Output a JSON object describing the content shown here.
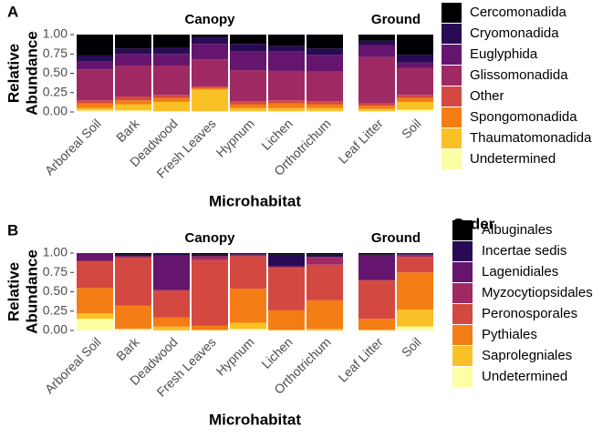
{
  "chart_data": [
    {
      "type": "bar",
      "stacked": true,
      "panel_label": "A",
      "xlabel": "Microhabitat",
      "ylabel": [
        "Relative",
        "Abundance"
      ],
      "ylim": [
        0,
        1
      ],
      "yticks": [
        {
          "value": 0,
          "label": "0.00"
        },
        {
          "value": 0.25,
          "label": "0.25"
        },
        {
          "value": 0.5,
          "label": "0.50"
        },
        {
          "value": 0.75,
          "label": "0.75"
        },
        {
          "value": 1,
          "label": "1.00"
        }
      ],
      "series": [
        {
          "name": "Cercomonadida",
          "color": "#000004"
        },
        {
          "name": "Cryomonadida",
          "color": "#280b54"
        },
        {
          "name": "Euglyphida",
          "color": "#65156e"
        },
        {
          "name": "Glissomonadida",
          "color": "#9f2a63"
        },
        {
          "name": "Other",
          "color": "#d44842"
        },
        {
          "name": "Spongomonadida",
          "color": "#f57d15"
        },
        {
          "name": "Thaumatomonadida",
          "color": "#fac127"
        },
        {
          "name": "Undetermined",
          "color": "#fcffa4"
        }
      ],
      "facets": [
        {
          "title": "Canopy",
          "categories": [
            "Arboreal Soil",
            "Bark",
            "Deadwood",
            "Fresh Leaves",
            "Hypnum",
            "Lichen",
            "Orthotrichum"
          ],
          "series": [
            {
              "values": [
                0.27,
                0.18,
                0.17,
                0.03,
                0.12,
                0.15,
                0.18
              ]
            },
            {
              "values": [
                0.08,
                0.07,
                0.08,
                0.09,
                0.1,
                0.07,
                0.08
              ]
            },
            {
              "values": [
                0.1,
                0.15,
                0.15,
                0.2,
                0.24,
                0.25,
                0.22
              ]
            },
            {
              "values": [
                0.4,
                0.4,
                0.38,
                0.35,
                0.4,
                0.38,
                0.38
              ]
            },
            {
              "values": [
                0.04,
                0.05,
                0.04,
                0.02,
                0.04,
                0.04,
                0.04
              ]
            },
            {
              "values": [
                0.06,
                0.05,
                0.05,
                0.02,
                0.05,
                0.06,
                0.05
              ]
            },
            {
              "values": [
                0.03,
                0.08,
                0.12,
                0.28,
                0.04,
                0.04,
                0.04
              ]
            },
            {
              "values": [
                0.02,
                0.02,
                0.01,
                0.01,
                0.01,
                0.01,
                0.01
              ]
            }
          ]
        },
        {
          "title": "Ground",
          "categories": [
            "Leaf Litter",
            "Soil"
          ],
          "series": [
            {
              "values": [
                0.08,
                0.26
              ]
            },
            {
              "values": [
                0.06,
                0.1
              ]
            },
            {
              "values": [
                0.15,
                0.07
              ]
            },
            {
              "values": [
                0.6,
                0.35
              ]
            },
            {
              "values": [
                0.03,
                0.04
              ]
            },
            {
              "values": [
                0.04,
                0.05
              ]
            },
            {
              "values": [
                0.03,
                0.1
              ]
            },
            {
              "values": [
                0.01,
                0.03
              ]
            }
          ]
        }
      ]
    },
    {
      "type": "bar",
      "stacked": true,
      "panel_label": "B",
      "xlabel": "Microhabitat",
      "ylabel": [
        "Relative",
        "Abundance"
      ],
      "legend_title": "Order",
      "ylim": [
        0,
        1
      ],
      "yticks": [
        {
          "value": 0,
          "label": "0.00"
        },
        {
          "value": 0.25,
          "label": "0.25"
        },
        {
          "value": 0.5,
          "label": "0.50"
        },
        {
          "value": 0.75,
          "label": "0.75"
        },
        {
          "value": 1,
          "label": "1.00"
        }
      ],
      "series": [
        {
          "name": "Albuginales",
          "color": "#000004"
        },
        {
          "name": "Incertae sedis",
          "color": "#280b54"
        },
        {
          "name": "Lagenidiales",
          "color": "#65156e"
        },
        {
          "name": "Myzocytiopsidales",
          "color": "#9f2a63"
        },
        {
          "name": "Peronosporales",
          "color": "#d44842"
        },
        {
          "name": "Pythiales",
          "color": "#f57d15"
        },
        {
          "name": "Saprolegniales",
          "color": "#fac127"
        },
        {
          "name": "Undetermined",
          "color": "#fcffa4"
        }
      ],
      "facets": [
        {
          "title": "Canopy",
          "categories": [
            "Arboreal Soil",
            "Bark",
            "Deadwood",
            "Fresh Leaves",
            "Hypnum",
            "Lichen",
            "Orthotrichum"
          ],
          "series": [
            {
              "values": [
                0.0,
                0.02,
                0.01,
                0.02,
                0.01,
                0.02,
                0.02
              ]
            },
            {
              "values": [
                0.0,
                0.02,
                0.02,
                0.02,
                0.01,
                0.15,
                0.03
              ]
            },
            {
              "values": [
                0.1,
                0.0,
                0.45,
                0.0,
                0.0,
                0.0,
                0.0
              ]
            },
            {
              "values": [
                0.0,
                0.02,
                0.0,
                0.05,
                0.02,
                0.02,
                0.1
              ]
            },
            {
              "values": [
                0.35,
                0.62,
                0.35,
                0.85,
                0.42,
                0.55,
                0.46
              ]
            },
            {
              "values": [
                0.33,
                0.3,
                0.12,
                0.05,
                0.44,
                0.25,
                0.37
              ]
            },
            {
              "values": [
                0.07,
                0.0,
                0.05,
                0.01,
                0.08,
                0.01,
                0.02
              ]
            },
            {
              "values": [
                0.15,
                0.02,
                0.0,
                0.0,
                0.02,
                0.0,
                0.0
              ]
            }
          ]
        },
        {
          "title": "Ground",
          "categories": [
            "Leaf Litter",
            "Soil"
          ],
          "series": [
            {
              "values": [
                0.02,
                0.0
              ]
            },
            {
              "values": [
                0.0,
                0.02
              ]
            },
            {
              "values": [
                0.33,
                0.0
              ]
            },
            {
              "values": [
                0.0,
                0.03
              ]
            },
            {
              "values": [
                0.5,
                0.2
              ]
            },
            {
              "values": [
                0.14,
                0.48
              ]
            },
            {
              "values": [
                0.01,
                0.22
              ]
            },
            {
              "values": [
                0.0,
                0.05
              ]
            }
          ]
        }
      ]
    }
  ]
}
